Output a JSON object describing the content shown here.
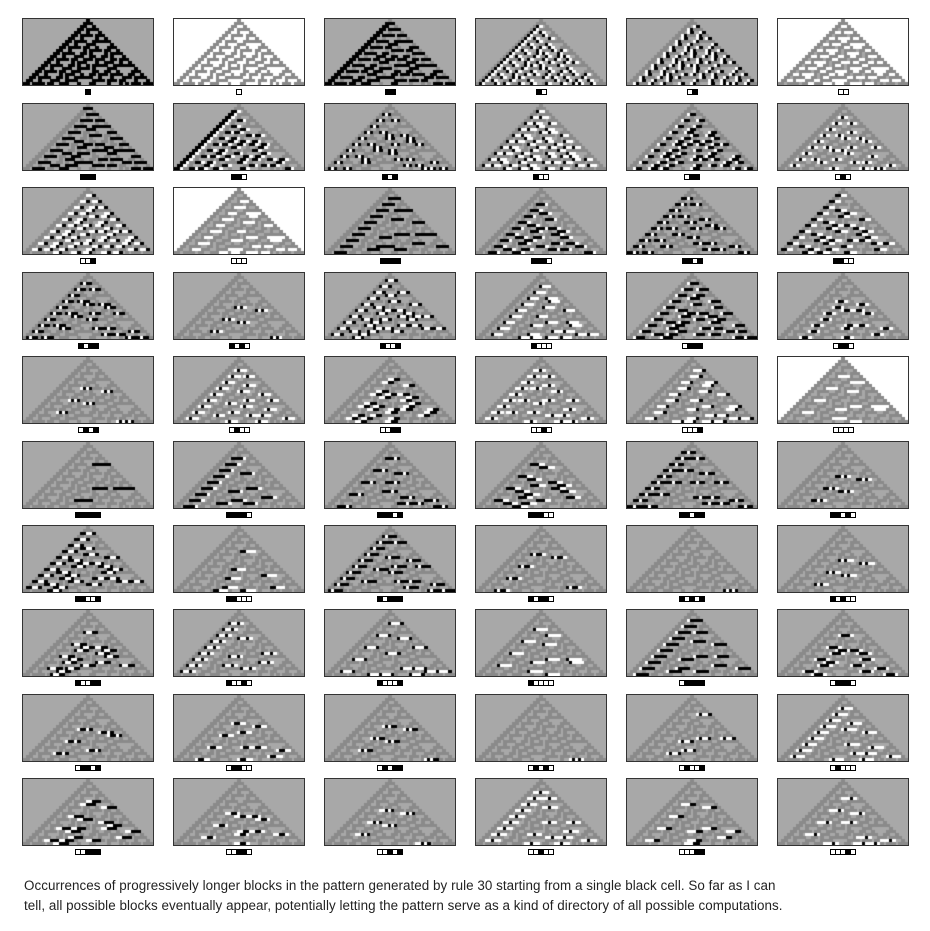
{
  "rule": 30,
  "colors": {
    "black": "#000000",
    "white": "#ffffff",
    "gray": "#a8a8a8",
    "pattern_gray": "#8a8a8a"
  },
  "blocks": [
    "1",
    "0",
    "11",
    "10",
    "01",
    "00",
    "111",
    "110",
    "101",
    "100",
    "011",
    "010",
    "001",
    "000",
    "1111",
    "1110",
    "1101",
    "1100",
    "1011",
    "1010",
    "1001",
    "1000",
    "0111",
    "0110",
    "0101",
    "0100",
    "0011",
    "0010",
    "0001",
    "0000",
    "11111",
    "11110",
    "11101",
    "11100",
    "11011",
    "11010",
    "11001",
    "11000",
    "10111",
    "10110",
    "10101",
    "10100",
    "10011",
    "10010",
    "10001",
    "10000",
    "01111",
    "01110",
    "01101",
    "01100",
    "01011",
    "01010",
    "01001",
    "01000",
    "00111",
    "00110",
    "00101",
    "00100",
    "00011",
    "00010"
  ],
  "caption": {
    "line1": "Occurrences of progressively longer blocks in the pattern generated by rule 30 starting from a single black cell. So far as I can",
    "line2": "tell, all possible blocks eventually appear, potentially letting the pattern serve as a kind of directory of all possible computations."
  }
}
